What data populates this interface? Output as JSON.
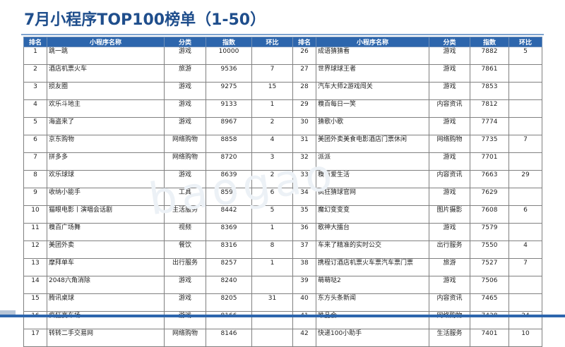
{
  "title": "7月小程序TOP100榜单（1-50）",
  "headers": [
    "排名",
    "小程序名称",
    "分类",
    "指数",
    "环比",
    "排名",
    "小程序名称",
    "分类",
    "指数",
    "环比"
  ],
  "rows": [
    {
      "l": [
        "1",
        "跳一跳",
        "游戏",
        "10000",
        ""
      ],
      "r": [
        "26",
        "成语猜猜看",
        "游戏",
        "7882",
        "5"
      ]
    },
    {
      "l": [
        "2",
        "酒店机票火车",
        "旅游",
        "9536",
        "7"
      ],
      "r": [
        "27",
        "世界球球王者",
        "游戏",
        "7861",
        ""
      ]
    },
    {
      "l": [
        "3",
        "损友圈",
        "游戏",
        "9275",
        "15"
      ],
      "r": [
        "28",
        "汽车大师2游戏闯关",
        "游戏",
        "7853",
        ""
      ]
    },
    {
      "l": [
        "4",
        "欢乐斗地主",
        "游戏",
        "9133",
        "1"
      ],
      "r": [
        "29",
        "糗百每日一笑",
        "内容资讯",
        "7812",
        ""
      ]
    },
    {
      "l": [
        "5",
        "海盗来了",
        "游戏",
        "8967",
        "2"
      ],
      "r": [
        "30",
        "猜歌小歌",
        "游戏",
        "7774",
        ""
      ]
    },
    {
      "l": [
        "6",
        "京东购物",
        "网络购物",
        "8858",
        "4"
      ],
      "r": [
        "31",
        "美团外卖美食电影酒店门票休闲",
        "网络购物",
        "7735",
        "7"
      ]
    },
    {
      "l": [
        "7",
        "拼多多",
        "网络购物",
        "8720",
        "3"
      ],
      "r": [
        "32",
        "派派",
        "游戏",
        "7701",
        ""
      ]
    },
    {
      "l": [
        "8",
        "欢乐球球",
        "游戏",
        "8639",
        "2"
      ],
      "r": [
        "33",
        "糗百爱生活",
        "内容资讯",
        "7663",
        "29"
      ]
    },
    {
      "l": [
        "9",
        "收纳小能手",
        "工具",
        "8591",
        "6"
      ],
      "r": [
        "34",
        "疯狂猜球官网",
        "游戏",
        "7629",
        ""
      ]
    },
    {
      "l": [
        "10",
        "猫眼电影丨演唱会话剧",
        "生活服务",
        "8442",
        "5"
      ],
      "r": [
        "35",
        "魔幻变变变",
        "图片摄影",
        "7608",
        "6"
      ]
    },
    {
      "l": [
        "11",
        "糗百广场舞",
        "视频",
        "8369",
        "1"
      ],
      "r": [
        "36",
        "歌神大擂台",
        "游戏",
        "7579",
        ""
      ]
    },
    {
      "l": [
        "12",
        "美团外卖",
        "餐饮",
        "8316",
        "8"
      ],
      "r": [
        "37",
        "车来了精准的实时公交",
        "出行服务",
        "7550",
        "4"
      ]
    },
    {
      "l": [
        "13",
        "摩拜单车",
        "出行服务",
        "8257",
        "1"
      ],
      "r": [
        "38",
        "携程订酒店机票火车票汽车票门票",
        "旅游",
        "7527",
        "7"
      ]
    },
    {
      "l": [
        "14",
        "2048六角消除",
        "游戏",
        "8240",
        ""
      ],
      "r": [
        "39",
        "萌萌哒2",
        "游戏",
        "7506",
        ""
      ]
    },
    {
      "l": [
        "15",
        "腾讯桌球",
        "游戏",
        "8205",
        "31"
      ],
      "r": [
        "40",
        "东方头条新闻",
        "内容资讯",
        "7465",
        ""
      ]
    },
    {
      "l": [
        "16",
        "疯狂赛车场",
        "游戏",
        "8166",
        ""
      ],
      "r": [
        "41",
        "唯品会",
        "网络购物",
        "7428",
        "24"
      ]
    },
    {
      "l": [
        "17",
        "转转二手交易网",
        "网络购物",
        "8146",
        ""
      ],
      "r": [
        "42",
        "快递100小助手",
        "生活服务",
        "7401",
        "10"
      ]
    }
  ],
  "watermark": "baogao"
}
